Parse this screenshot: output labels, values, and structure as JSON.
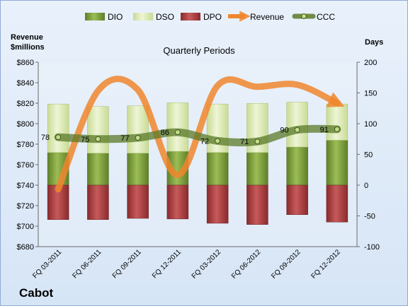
{
  "chart_data": {
    "type": "bar",
    "title": "Quarterly Periods",
    "company": "Cabot",
    "left_axis_label": [
      "Revenue",
      "$millions"
    ],
    "right_axis_label": "Days",
    "categories": [
      "FQ 03-2011",
      "FQ 06-2011",
      "FQ 09-2011",
      "FQ 12-2011",
      "FQ 03-2012",
      "FQ 06-2012",
      "FQ 09-2012",
      "FQ 12-2012"
    ],
    "left_axis": {
      "min": 680,
      "max": 860,
      "step": 20,
      "prefix": "$"
    },
    "right_axis": {
      "min": -100,
      "max": 200,
      "step": 50
    },
    "series": [
      {
        "name": "DIO",
        "axis": "days",
        "kind": "stacked-bar",
        "values": [
          53,
          52,
          52,
          55,
          53,
          53,
          62,
          73
        ]
      },
      {
        "name": "DSO",
        "axis": "days",
        "kind": "stacked-bar",
        "values": [
          79,
          76,
          77,
          79,
          79,
          80,
          73,
          59
        ]
      },
      {
        "name": "DPO",
        "axis": "days",
        "kind": "stacked-bar-negative",
        "values": [
          -56,
          -56,
          -54,
          -55,
          -62,
          -64,
          -48,
          -60
        ]
      },
      {
        "name": "Revenue",
        "axis": "revenue",
        "kind": "line",
        "values": [
          736,
          832,
          833,
          750,
          837,
          836,
          838,
          820
        ]
      },
      {
        "name": "CCC",
        "axis": "days",
        "kind": "line",
        "values": [
          78,
          75,
          77,
          86,
          72,
          71,
          90,
          91
        ]
      }
    ],
    "data_labels": [
      "78",
      "75",
      "77",
      "86",
      "72",
      "71",
      "90",
      "91"
    ],
    "legend_position": "top",
    "colors": {
      "DIO": "#7a9a3a",
      "DSO": "#dce8b4",
      "DPO": "#a83a3c",
      "Revenue": "#f0862e",
      "CCC": "#5a7a28"
    }
  }
}
